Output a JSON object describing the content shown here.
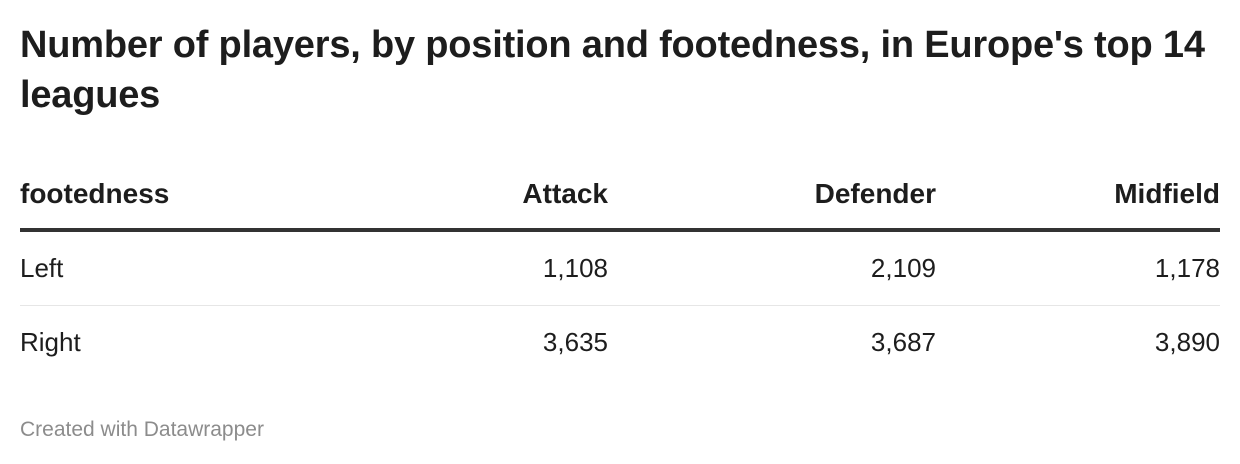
{
  "title": "Number of players, by position and footedness, in Europe's top 14 leagues",
  "footer": "Created with Datawrapper",
  "chart_data": {
    "type": "table",
    "title": "Number of players, by position and footedness, in Europe's top 14 leagues",
    "columns": [
      "footedness",
      "Attack",
      "Defender",
      "Midfield"
    ],
    "rows": [
      {
        "footedness": "Left",
        "values": [
          "1,108",
          "2,109",
          "1,178"
        ]
      },
      {
        "footedness": "Right",
        "values": [
          "3,635",
          "3,687",
          "3,890"
        ]
      }
    ],
    "series": [
      {
        "name": "Attack",
        "values": [
          1108,
          3635
        ]
      },
      {
        "name": "Defender",
        "values": [
          2109,
          3687
        ]
      },
      {
        "name": "Midfield",
        "values": [
          1178,
          3890
        ]
      }
    ],
    "categories": [
      "Left",
      "Right"
    ]
  }
}
